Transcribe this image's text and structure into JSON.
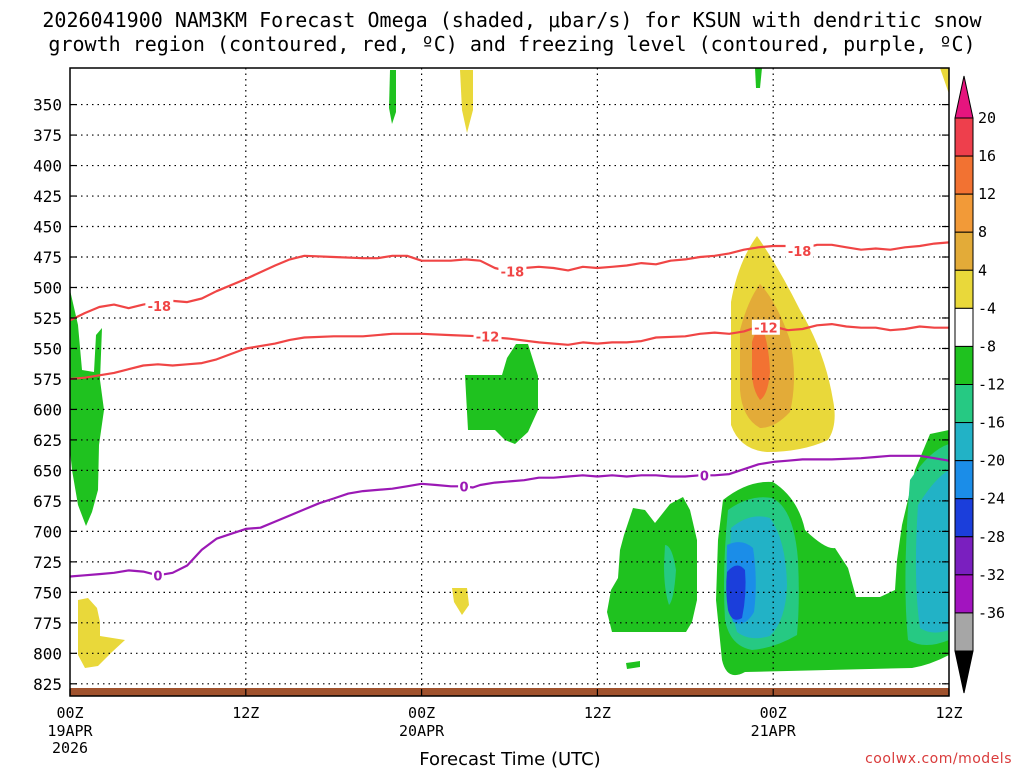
{
  "chart_data": {
    "type": "time-height contour",
    "title_line1": "2026041900 NAM3KM Forecast Omega (shaded, μbar/s) for KSUN with dendritic snow",
    "title_line2": "growth region (contoured, red, ºC) and freezing level (contoured, purple, ºC)",
    "xlabel": "Forecast Time (UTC)",
    "credit": "coolwx.com/models",
    "x_range_hours": [
      0,
      60
    ],
    "y_range_hpa": [
      320,
      835
    ],
    "x_ticks": [
      {
        "h": 0,
        "label": "00Z",
        "sub1": "19APR",
        "sub2": "2026"
      },
      {
        "h": 12,
        "label": "12Z",
        "sub1": "",
        "sub2": ""
      },
      {
        "h": 24,
        "label": "00Z",
        "sub1": "20APR",
        "sub2": ""
      },
      {
        "h": 36,
        "label": "12Z",
        "sub1": "",
        "sub2": ""
      },
      {
        "h": 48,
        "label": "00Z",
        "sub1": "21APR",
        "sub2": ""
      },
      {
        "h": 60,
        "label": "12Z",
        "sub1": "",
        "sub2": ""
      }
    ],
    "y_ticks": [
      350,
      375,
      400,
      425,
      450,
      475,
      500,
      525,
      550,
      575,
      600,
      625,
      650,
      675,
      700,
      725,
      750,
      775,
      800,
      825
    ],
    "colorbar": {
      "labels": [
        "20",
        "16",
        "12",
        "8",
        "4",
        "-4",
        "-8",
        "-12",
        "-16",
        "-20",
        "-24",
        "-28",
        "-32",
        "-36"
      ],
      "colors": [
        "#ee3f4c",
        "#f27232",
        "#f29a38",
        "#e3ab38",
        "#e9d83a",
        "#ffffff",
        "#1fc21f",
        "#26c983",
        "#22b2c6",
        "#1b8de8",
        "#1b3edb",
        "#7a1fbf",
        "#a214bf",
        "#a6a6a6"
      ],
      "top_arrow_color": "#e6157e",
      "bottom_arrow_color": "#000000"
    },
    "series": [
      {
        "name": "-18 °C isotherm",
        "color": "#f04545",
        "label": "-18",
        "label_at": [
          [
            6.1,
            515
          ],
          [
            30.2,
            487
          ],
          [
            49.8,
            470
          ]
        ],
        "points": [
          [
            0,
            527
          ],
          [
            1,
            521
          ],
          [
            2,
            516
          ],
          [
            3,
            514
          ],
          [
            4,
            517
          ],
          [
            5,
            514
          ],
          [
            6,
            512
          ],
          [
            7,
            511
          ],
          [
            8,
            512
          ],
          [
            9,
            509
          ],
          [
            10,
            503
          ],
          [
            12,
            493
          ],
          [
            14,
            482
          ],
          [
            15,
            477
          ],
          [
            16,
            474
          ],
          [
            18,
            475
          ],
          [
            20,
            476
          ],
          [
            21,
            476
          ],
          [
            22,
            474
          ],
          [
            23,
            474
          ],
          [
            24,
            478
          ],
          [
            26,
            478
          ],
          [
            27,
            477
          ],
          [
            28,
            478
          ],
          [
            29,
            484
          ],
          [
            30,
            487
          ],
          [
            31,
            484
          ],
          [
            32,
            483
          ],
          [
            33,
            484
          ],
          [
            34,
            486
          ],
          [
            35,
            483
          ],
          [
            36,
            484
          ],
          [
            37,
            483
          ],
          [
            38,
            482
          ],
          [
            39,
            480
          ],
          [
            40,
            481
          ],
          [
            41,
            478
          ],
          [
            42,
            477
          ],
          [
            43,
            475
          ],
          [
            44,
            474
          ],
          [
            45,
            472
          ],
          [
            46,
            469
          ],
          [
            47,
            467
          ],
          [
            48,
            466
          ],
          [
            49,
            466
          ],
          [
            50,
            468
          ],
          [
            51,
            465
          ],
          [
            52,
            465
          ],
          [
            53,
            467
          ],
          [
            54,
            469
          ],
          [
            55,
            468
          ],
          [
            56,
            469
          ],
          [
            57,
            467
          ],
          [
            58,
            466
          ],
          [
            59,
            464
          ],
          [
            60,
            463
          ]
        ]
      },
      {
        "name": "-12 °C isotherm",
        "color": "#f04545",
        "label": "-12",
        "label_at": [
          [
            28.5,
            540
          ],
          [
            47.5,
            533
          ]
        ],
        "points": [
          [
            0,
            575
          ],
          [
            1,
            574
          ],
          [
            3,
            570
          ],
          [
            4,
            567
          ],
          [
            5,
            564
          ],
          [
            6,
            563
          ],
          [
            7,
            564
          ],
          [
            8,
            563
          ],
          [
            9,
            562
          ],
          [
            10,
            559
          ],
          [
            12,
            550
          ],
          [
            14,
            546
          ],
          [
            15,
            543
          ],
          [
            16,
            541
          ],
          [
            18,
            540
          ],
          [
            20,
            540
          ],
          [
            22,
            538
          ],
          [
            24,
            538
          ],
          [
            26,
            539
          ],
          [
            28,
            540
          ],
          [
            30,
            542
          ],
          [
            32,
            545
          ],
          [
            34,
            547
          ],
          [
            35,
            545
          ],
          [
            36,
            546
          ],
          [
            37,
            545
          ],
          [
            38,
            545
          ],
          [
            39,
            544
          ],
          [
            40,
            541
          ],
          [
            42,
            540
          ],
          [
            43,
            538
          ],
          [
            44,
            537
          ],
          [
            45,
            538
          ],
          [
            46,
            536
          ],
          [
            47,
            532
          ],
          [
            48,
            532
          ],
          [
            49,
            535
          ],
          [
            50,
            534
          ],
          [
            51,
            531
          ],
          [
            52,
            530
          ],
          [
            53,
            532
          ],
          [
            54,
            533
          ],
          [
            55,
            533
          ],
          [
            56,
            535
          ],
          [
            57,
            534
          ],
          [
            58,
            532
          ],
          [
            59,
            533
          ],
          [
            60,
            533
          ]
        ]
      },
      {
        "name": "0 °C freezing level",
        "color": "#9b19b5",
        "label": "0",
        "label_at": [
          [
            6.0,
            736
          ],
          [
            26.9,
            663
          ],
          [
            43.3,
            654
          ]
        ],
        "points": [
          [
            0,
            737
          ],
          [
            1,
            736
          ],
          [
            2,
            735
          ],
          [
            3,
            734
          ],
          [
            4,
            732
          ],
          [
            5,
            733
          ],
          [
            6,
            736
          ],
          [
            7,
            734
          ],
          [
            8,
            728
          ],
          [
            9,
            715
          ],
          [
            10,
            706
          ],
          [
            11,
            702
          ],
          [
            12,
            698
          ],
          [
            13,
            697
          ],
          [
            14,
            692
          ],
          [
            15,
            687
          ],
          [
            16,
            682
          ],
          [
            17,
            677
          ],
          [
            18,
            673
          ],
          [
            19,
            669
          ],
          [
            20,
            667
          ],
          [
            21,
            666
          ],
          [
            22,
            665
          ],
          [
            23,
            663
          ],
          [
            24,
            661
          ],
          [
            25,
            662
          ],
          [
            26,
            663
          ],
          [
            26.9,
            663
          ],
          [
            27.5,
            664
          ],
          [
            28,
            662
          ],
          [
            29,
            660
          ],
          [
            30,
            659
          ],
          [
            31,
            658
          ],
          [
            32,
            656
          ],
          [
            33,
            656
          ],
          [
            34,
            655
          ],
          [
            35,
            654
          ],
          [
            36,
            655
          ],
          [
            37,
            654
          ],
          [
            38,
            655
          ],
          [
            39,
            654
          ],
          [
            40,
            654
          ],
          [
            41,
            655
          ],
          [
            42,
            655
          ],
          [
            43,
            654
          ],
          [
            44,
            654
          ],
          [
            45,
            653
          ],
          [
            46,
            649
          ],
          [
            47,
            645
          ],
          [
            48,
            643
          ],
          [
            49,
            642
          ],
          [
            50,
            641
          ],
          [
            52,
            641
          ],
          [
            54,
            640
          ],
          [
            55,
            639
          ],
          [
            56,
            638
          ],
          [
            57,
            638
          ],
          [
            58,
            638
          ],
          [
            59,
            640
          ],
          [
            60,
            642
          ]
        ]
      }
    ]
  }
}
